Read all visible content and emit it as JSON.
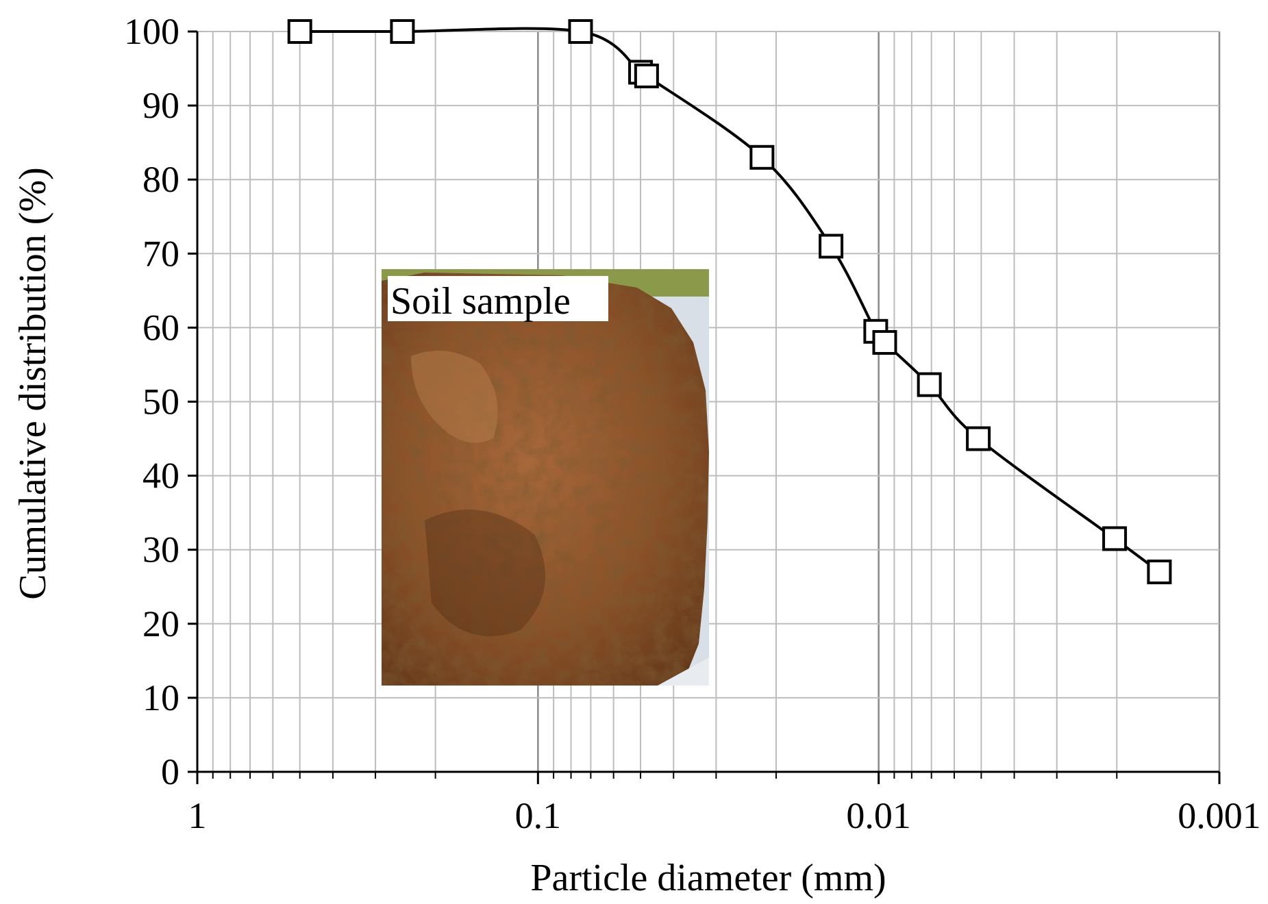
{
  "chart_data": {
    "type": "line",
    "title": "",
    "xlabel": "Particle diameter (mm)",
    "ylabel": "Cumulative distribution (%)",
    "x_scale": "log",
    "x_reversed": true,
    "xlim": [
      1,
      0.001
    ],
    "ylim": [
      0,
      100
    ],
    "grid": true,
    "x_ticks": [
      {
        "value": 1,
        "label": "1"
      },
      {
        "value": 0.1,
        "label": "0.1"
      },
      {
        "value": 0.01,
        "label": "0.01"
      },
      {
        "value": 0.001,
        "label": "0.001"
      }
    ],
    "y_ticks": [
      {
        "value": 0,
        "label": "0"
      },
      {
        "value": 10,
        "label": "10"
      },
      {
        "value": 20,
        "label": "20"
      },
      {
        "value": 30,
        "label": "30"
      },
      {
        "value": 40,
        "label": "40"
      },
      {
        "value": 50,
        "label": "50"
      },
      {
        "value": 60,
        "label": "60"
      },
      {
        "value": 70,
        "label": "70"
      },
      {
        "value": 80,
        "label": "80"
      },
      {
        "value": 90,
        "label": "90"
      },
      {
        "value": 100,
        "label": "100"
      }
    ],
    "series": [
      {
        "marker": "open-square",
        "color": "#000000",
        "points": [
          {
            "x": 0.5,
            "y": 100
          },
          {
            "x": 0.25,
            "y": 100
          },
          {
            "x": 0.075,
            "y": 100
          },
          {
            "x": 0.05,
            "y": 94.5
          },
          {
            "x": 0.048,
            "y": 94
          },
          {
            "x": 0.022,
            "y": 83
          },
          {
            "x": 0.0138,
            "y": 71
          },
          {
            "x": 0.0102,
            "y": 59.5
          },
          {
            "x": 0.0096,
            "y": 58
          },
          {
            "x": 0.0071,
            "y": 52.3
          },
          {
            "x": 0.0051,
            "y": 45
          },
          {
            "x": 0.00203,
            "y": 31.5
          },
          {
            "x": 0.0015,
            "y": 27
          }
        ]
      }
    ]
  },
  "inset": {
    "label": "Soil sample",
    "icon": "soil-sample-photo"
  }
}
